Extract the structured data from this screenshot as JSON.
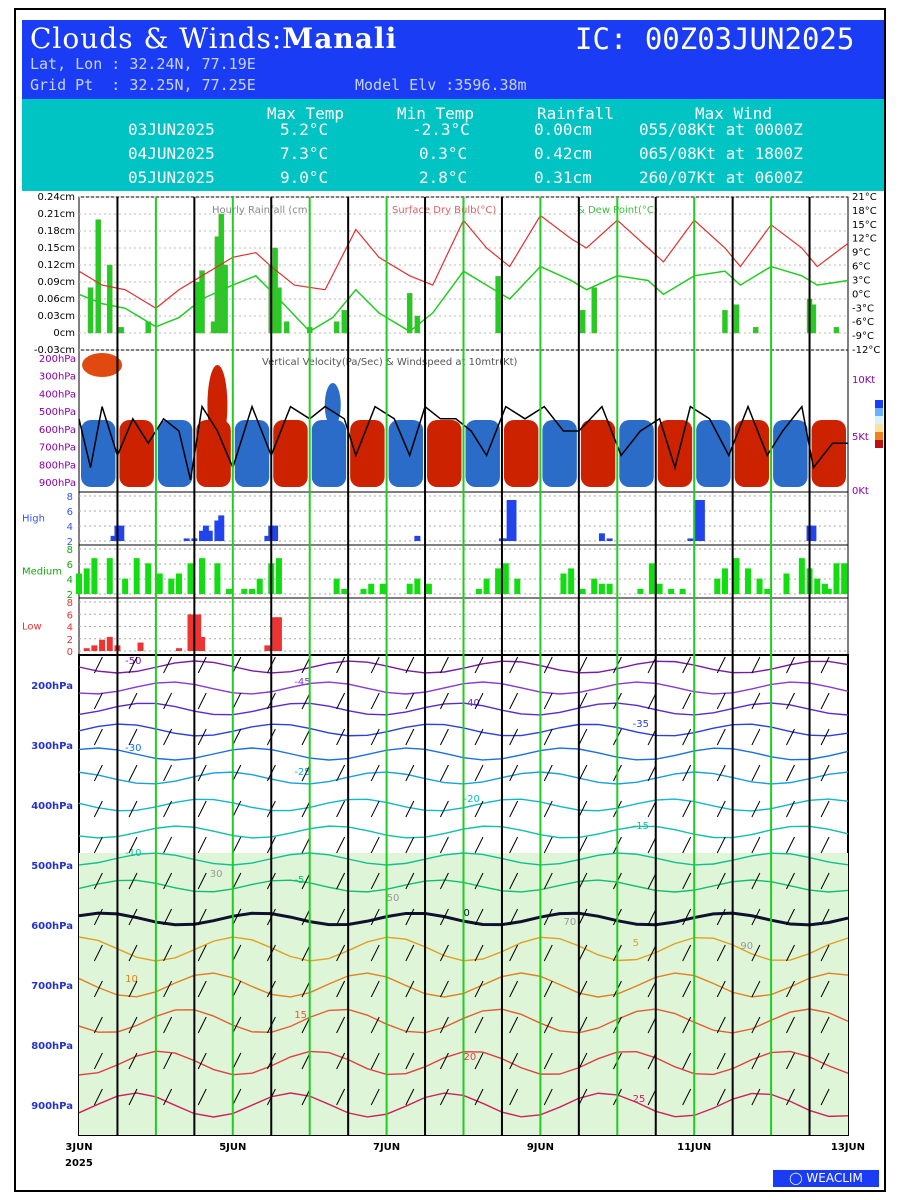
{
  "header": {
    "title_prefix": "Clouds & Winds:",
    "location": "Manali",
    "ic": "IC: 00Z03JUN2025",
    "latlon": "Lat, Lon : 32.24N, 77.19E",
    "gridpt": "Grid Pt  : 32.25N, 77.25E",
    "elev": "Model Elv :3596.38m"
  },
  "summary": {
    "headers": [
      "Max Temp",
      "Min Temp",
      "Rainfall",
      "Max Wind"
    ],
    "rows": [
      {
        "date": "03JUN2025",
        "max": "5.2°C",
        "min": "-2.3°C",
        "rain": "0.00cm",
        "wind": "055/08Kt at 0000Z"
      },
      {
        "date": "04JUN2025",
        "max": "7.3°C",
        "min": "0.3°C",
        "rain": "0.42cm",
        "wind": "065/08Kt at 1800Z"
      },
      {
        "date": "05JUN2025",
        "max": "9.0°C",
        "min": "2.8°C",
        "rain": "0.31cm",
        "wind": "260/07Kt at 0600Z"
      }
    ]
  },
  "logo": "WEACLIM",
  "colors": {
    "header_bg": "#1a3cf5",
    "summary_bg": "#00c4c4",
    "rain": "#22cc22",
    "temp": "#e03030",
    "dew": "#22cc22",
    "high": "#2244ee",
    "medium": "#11dd11",
    "low": "#ee3333"
  },
  "chart_data": [
    {
      "type": "bar",
      "title": "Hourly Rainfall (cm)",
      "legend": [
        "Surface Dry Bulb(°C)",
        "& Dew Point(°C)"
      ],
      "x": [
        "3JUN",
        "5JUN",
        "7JUN",
        "9JUN",
        "11JUN",
        "13JUN"
      ],
      "year": "2025",
      "xlim_days": [
        0,
        10
      ],
      "ylim_rain": [
        -0.03,
        0.24
      ],
      "rain_ticks": [
        "0.24cm",
        "0.21cm",
        "0.18cm",
        "0.15cm",
        "0.12cm",
        "0.09cm",
        "0.06cm",
        "0.03cm",
        "0cm",
        "-0.03cm"
      ],
      "temp_ticks": [
        "21°C",
        "18°C",
        "15°C",
        "12°C",
        "9°C",
        "6°C",
        "3°C",
        "0°C",
        "-3°C",
        "-6°C",
        "-9°C",
        "-12°C"
      ],
      "ylim_temp": [
        -12,
        21
      ],
      "rain": [
        [
          0.15,
          0.08
        ],
        [
          0.25,
          0.2
        ],
        [
          0.4,
          0.12
        ],
        [
          0.55,
          0.01
        ],
        [
          0.9,
          0.02
        ],
        [
          1.55,
          0.09
        ],
        [
          1.6,
          0.11
        ],
        [
          1.75,
          0.02
        ],
        [
          1.8,
          0.17
        ],
        [
          1.85,
          0.21
        ],
        [
          1.9,
          0.12
        ],
        [
          2.5,
          0.12
        ],
        [
          2.55,
          0.15
        ],
        [
          2.6,
          0.08
        ],
        [
          2.7,
          0.02
        ],
        [
          3.0,
          0.01
        ],
        [
          3.35,
          0.02
        ],
        [
          3.45,
          0.04
        ],
        [
          4.3,
          0.07
        ],
        [
          4.4,
          0.03
        ],
        [
          5.45,
          0.1
        ],
        [
          6.55,
          0.04
        ],
        [
          6.7,
          0.08
        ],
        [
          8.4,
          0.04
        ],
        [
          8.55,
          0.05
        ],
        [
          8.8,
          0.01
        ],
        [
          9.5,
          0.06
        ],
        [
          9.55,
          0.05
        ],
        [
          9.85,
          0.01
        ]
      ],
      "temp": [
        [
          0,
          5
        ],
        [
          0.3,
          2
        ],
        [
          0.6,
          1
        ],
        [
          1,
          -3
        ],
        [
          1.3,
          1
        ],
        [
          1.6,
          4
        ],
        [
          2,
          8
        ],
        [
          2.3,
          9
        ],
        [
          2.5,
          6
        ],
        [
          2.8,
          2
        ],
        [
          3.2,
          1
        ],
        [
          3.6,
          14
        ],
        [
          3.9,
          8
        ],
        [
          4.3,
          4
        ],
        [
          4.6,
          2
        ],
        [
          5.0,
          16
        ],
        [
          5.3,
          10
        ],
        [
          5.6,
          6
        ],
        [
          6.0,
          17
        ],
        [
          6.4,
          12
        ],
        [
          6.6,
          10
        ],
        [
          7.0,
          16
        ],
        [
          7.4,
          10
        ],
        [
          7.6,
          7
        ],
        [
          8.0,
          16
        ],
        [
          8.4,
          10
        ],
        [
          8.6,
          6
        ],
        [
          9.0,
          15
        ],
        [
          9.4,
          10
        ],
        [
          9.6,
          6
        ],
        [
          10,
          11
        ]
      ],
      "dew": [
        [
          0,
          0
        ],
        [
          0.3,
          -2
        ],
        [
          0.6,
          -3
        ],
        [
          1,
          -7
        ],
        [
          1.3,
          -5
        ],
        [
          1.6,
          -1
        ],
        [
          2,
          2
        ],
        [
          2.3,
          4
        ],
        [
          2.6,
          -1
        ],
        [
          3.0,
          -8
        ],
        [
          3.3,
          -5
        ],
        [
          3.6,
          1
        ],
        [
          3.9,
          -4
        ],
        [
          4.3,
          -8
        ],
        [
          4.6,
          -4
        ],
        [
          5.0,
          5
        ],
        [
          5.3,
          2
        ],
        [
          5.6,
          -1
        ],
        [
          6.0,
          6
        ],
        [
          6.4,
          3
        ],
        [
          6.6,
          1
        ],
        [
          7.0,
          4
        ],
        [
          7.4,
          3
        ],
        [
          7.6,
          0
        ],
        [
          8.0,
          4
        ],
        [
          8.4,
          5
        ],
        [
          8.6,
          2
        ],
        [
          9.0,
          6
        ],
        [
          9.4,
          4
        ],
        [
          9.6,
          2
        ],
        [
          10,
          3
        ]
      ]
    },
    {
      "type": "heatmap",
      "title": "Vertical Velocity(Pa/Sec) & Windspeed at 10mtr(Kt)",
      "levels": [
        "200hPa",
        "300hPa",
        "400hPa",
        "500hPa",
        "600hPa",
        "700hPa",
        "800hPa",
        "900hPa"
      ],
      "wind_ticks": [
        "10Kt",
        "5Kt",
        "0Kt"
      ],
      "ylim_wind": [
        0,
        10
      ],
      "wind10m": [
        [
          0,
          6
        ],
        [
          0.15,
          2
        ],
        [
          0.3,
          7
        ],
        [
          0.5,
          3
        ],
        [
          0.7,
          6
        ],
        [
          0.9,
          4
        ],
        [
          1.1,
          6
        ],
        [
          1.3,
          5
        ],
        [
          1.45,
          1
        ],
        [
          1.6,
          7
        ],
        [
          1.8,
          5
        ],
        [
          2,
          2
        ],
        [
          2.25,
          7
        ],
        [
          2.5,
          3
        ],
        [
          2.75,
          7
        ],
        [
          3,
          6
        ],
        [
          3.2,
          7
        ],
        [
          3.45,
          6
        ],
        [
          3.6,
          3
        ],
        [
          3.85,
          7
        ],
        [
          4.1,
          6
        ],
        [
          4.3,
          3
        ],
        [
          4.5,
          7
        ],
        [
          4.7,
          6
        ],
        [
          4.9,
          6
        ],
        [
          5.1,
          5
        ],
        [
          5.3,
          3
        ],
        [
          5.55,
          7
        ],
        [
          5.8,
          6
        ],
        [
          6.05,
          7
        ],
        [
          6.3,
          5
        ],
        [
          6.5,
          5
        ],
        [
          6.8,
          7
        ],
        [
          7.05,
          3
        ],
        [
          7.3,
          5
        ],
        [
          7.55,
          6
        ],
        [
          7.75,
          2
        ],
        [
          7.95,
          7
        ],
        [
          8.2,
          6
        ],
        [
          8.45,
          3
        ],
        [
          8.7,
          7
        ],
        [
          8.95,
          3
        ],
        [
          9.15,
          5
        ],
        [
          9.4,
          7
        ],
        [
          9.55,
          2
        ],
        [
          9.8,
          4
        ],
        [
          10,
          4
        ]
      ]
    },
    {
      "type": "bar",
      "title": "High",
      "yticks": [
        "8",
        "6",
        "4",
        "2"
      ],
      "ylim": [
        0,
        8
      ],
      "values": [
        [
          0.45,
          1
        ],
        [
          0.5,
          3
        ],
        [
          0.55,
          3
        ],
        [
          1.4,
          0.5
        ],
        [
          1.5,
          0.5
        ],
        [
          1.6,
          2
        ],
        [
          1.65,
          3
        ],
        [
          1.7,
          2
        ],
        [
          1.8,
          4
        ],
        [
          1.85,
          5
        ],
        [
          2.45,
          1
        ],
        [
          2.5,
          3
        ],
        [
          2.55,
          3
        ],
        [
          4.4,
          1
        ],
        [
          5.5,
          0.5
        ],
        [
          5.55,
          0.5
        ],
        [
          5.6,
          8
        ],
        [
          5.65,
          8
        ],
        [
          6.8,
          1.5
        ],
        [
          6.9,
          0.5
        ],
        [
          7.95,
          0.5
        ],
        [
          8.05,
          8
        ],
        [
          8.1,
          8
        ],
        [
          9.5,
          3
        ],
        [
          9.55,
          3
        ]
      ]
    },
    {
      "type": "bar",
      "title": "Medium",
      "yticks": [
        "8",
        "6",
        "4",
        "2"
      ],
      "ylim": [
        0,
        8
      ],
      "values": [
        [
          0,
          4
        ],
        [
          0.1,
          5
        ],
        [
          0.2,
          7
        ],
        [
          0.4,
          7
        ],
        [
          0.6,
          3
        ],
        [
          0.75,
          7
        ],
        [
          0.9,
          6
        ],
        [
          1.05,
          4
        ],
        [
          1.2,
          3
        ],
        [
          1.3,
          4
        ],
        [
          1.45,
          6
        ],
        [
          1.6,
          7
        ],
        [
          1.8,
          6
        ],
        [
          1.95,
          1
        ],
        [
          2.15,
          1
        ],
        [
          2.25,
          1
        ],
        [
          2.35,
          3
        ],
        [
          2.5,
          6
        ],
        [
          2.6,
          7
        ],
        [
          3.35,
          3
        ],
        [
          3.45,
          1
        ],
        [
          3.7,
          1
        ],
        [
          3.8,
          2
        ],
        [
          3.95,
          2
        ],
        [
          4.3,
          2
        ],
        [
          4.4,
          3
        ],
        [
          4.55,
          2
        ],
        [
          5.2,
          1
        ],
        [
          5.3,
          3
        ],
        [
          5.45,
          5
        ],
        [
          5.55,
          6
        ],
        [
          5.7,
          3
        ],
        [
          6.3,
          4
        ],
        [
          6.4,
          5
        ],
        [
          6.55,
          1
        ],
        [
          6.7,
          3
        ],
        [
          6.8,
          2
        ],
        [
          6.9,
          2
        ],
        [
          7.3,
          1
        ],
        [
          7.45,
          6
        ],
        [
          7.55,
          2
        ],
        [
          7.7,
          1
        ],
        [
          7.85,
          1
        ],
        [
          8.3,
          3
        ],
        [
          8.4,
          5
        ],
        [
          8.55,
          7
        ],
        [
          8.7,
          5
        ],
        [
          8.85,
          3
        ],
        [
          8.95,
          1
        ],
        [
          9.2,
          4
        ],
        [
          9.4,
          7
        ],
        [
          9.5,
          5
        ],
        [
          9.6,
          3
        ],
        [
          9.7,
          2
        ],
        [
          9.75,
          1
        ],
        [
          9.85,
          6
        ],
        [
          9.95,
          6
        ]
      ]
    },
    {
      "type": "bar",
      "title": "Low",
      "yticks": [
        "8",
        "6",
        "4",
        "2",
        "0"
      ],
      "ylim": [
        0,
        8
      ],
      "values": [
        [
          0.1,
          0.5
        ],
        [
          0.2,
          1
        ],
        [
          0.3,
          2
        ],
        [
          0.4,
          2.5
        ],
        [
          0.5,
          1
        ],
        [
          0.8,
          1.5
        ],
        [
          1.3,
          0.5
        ],
        [
          1.45,
          6.5
        ],
        [
          1.55,
          6.5
        ],
        [
          1.6,
          2.5
        ],
        [
          2.45,
          1
        ],
        [
          2.55,
          6
        ],
        [
          2.6,
          6
        ]
      ]
    },
    {
      "type": "line",
      "title": "",
      "levels": [
        "200hPa",
        "300hPa",
        "400hPa",
        "500hPa",
        "600hPa",
        "700hPa",
        "800hPa",
        "900hPa"
      ],
      "isotherm_labels": [
        "-55",
        "-50",
        "-45",
        "-40",
        "-35",
        "-30",
        "-25",
        "-20",
        "-15",
        "-10",
        "-5",
        "0",
        "5",
        "10",
        "15",
        "20",
        "25",
        "30"
      ],
      "rh_labels": [
        "30",
        "50",
        "70",
        "90"
      ],
      "isotherms": [
        {
          "t": -50,
          "p": 170
        },
        {
          "t": -45,
          "p": 205
        },
        {
          "t": -40,
          "p": 240
        },
        {
          "t": -35,
          "p": 275
        },
        {
          "t": -30,
          "p": 315
        },
        {
          "t": -25,
          "p": 355
        },
        {
          "t": -20,
          "p": 400
        },
        {
          "t": -15,
          "p": 445
        },
        {
          "t": -10,
          "p": 490
        },
        {
          "t": -5,
          "p": 535
        },
        {
          "t": 0,
          "p": 590
        },
        {
          "t": 5,
          "p": 640
        },
        {
          "t": 10,
          "p": 700
        },
        {
          "t": 15,
          "p": 760
        },
        {
          "t": 20,
          "p": 830
        },
        {
          "t": 25,
          "p": 900
        }
      ]
    }
  ]
}
